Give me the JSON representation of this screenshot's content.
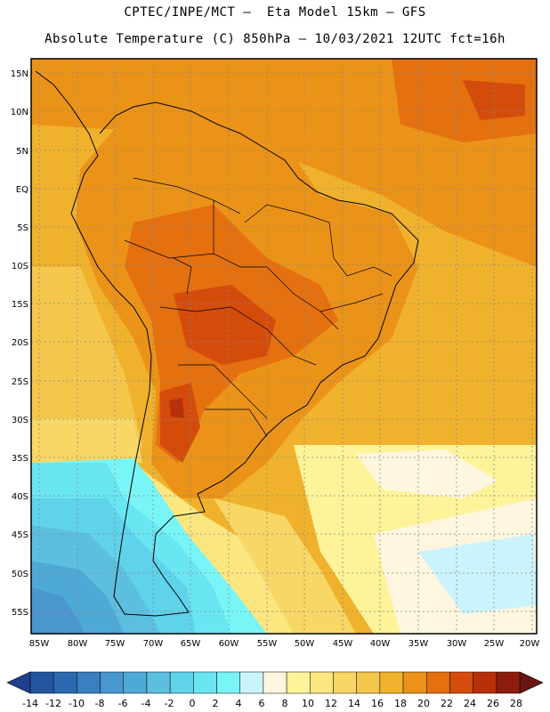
{
  "header": {
    "line1": "CPTEC/INPE/MCT –  Eta Model 15km – GFS",
    "line2": "Absolute Temperature (C) 850hPa – 10/03/2021 12UTC fct=16h"
  },
  "map": {
    "lat_labels": [
      "15N",
      "10N",
      "5N",
      "EQ",
      "5S",
      "10S",
      "15S",
      "20S",
      "25S",
      "30S",
      "35S",
      "40S",
      "45S",
      "50S",
      "55S"
    ],
    "lon_labels": [
      "85W",
      "80W",
      "75W",
      "70W",
      "65W",
      "60W",
      "55W",
      "50W",
      "45W",
      "40W",
      "35W",
      "30W",
      "25W",
      "20W"
    ]
  },
  "colorbar": {
    "labels": [
      "-14",
      "-12",
      "-10",
      "-8",
      "-6",
      "-4",
      "-2",
      "0",
      "2",
      "4",
      "6",
      "8",
      "10",
      "12",
      "14",
      "16",
      "18",
      "20",
      "22",
      "24",
      "26",
      "28"
    ],
    "colors": [
      "#1f3f8f",
      "#2355a0",
      "#2a69b0",
      "#3a7fc0",
      "#4a96cf",
      "#4fa9d6",
      "#5cbfe0",
      "#5fd3ea",
      "#6ae6f2",
      "#7af5f7",
      "#cbf3fb",
      "#fff6df",
      "#fff39a",
      "#fbe680",
      "#f8d766",
      "#f4c64c",
      "#f0b22c",
      "#eb9318",
      "#e4700f",
      "#d44c0c",
      "#b8300a",
      "#8e1c0c",
      "#6a150f"
    ]
  }
}
